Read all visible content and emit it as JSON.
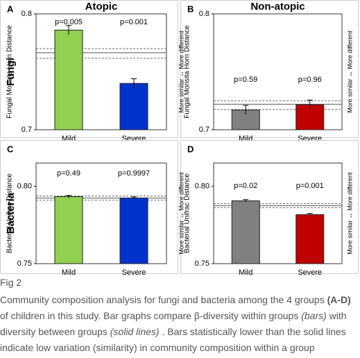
{
  "chart_data": [
    {
      "type": "bar",
      "letter": "A",
      "title": "Atopic",
      "row_label": "Fungi",
      "ylabel": "Fungal Morisita Horn Distance",
      "categories": [
        "Mild",
        "Severe"
      ],
      "values": [
        0.786,
        0.74
      ],
      "errors": [
        0.004,
        0.004
      ],
      "colors": [
        "#92d050",
        "#0033cc"
      ],
      "annotations": [
        "p=0.005",
        "p=0.001"
      ],
      "ylim": [
        0.7,
        0.8
      ],
      "yticks": [
        0.7,
        0.8
      ],
      "between_group": 0.7665,
      "between_group_ci": [
        0.7617,
        0.77
      ]
    },
    {
      "type": "bar",
      "letter": "B",
      "title": "Non-atopic",
      "ylabel": "Fungal Morisita Horn Distance",
      "side_label_left": "More similar ↔ More different",
      "side_label_right": "More similar ↔ More different",
      "categories": [
        "Mild",
        "Severe"
      ],
      "values": [
        0.717,
        0.7216
      ],
      "errors": [
        0.004,
        0.004
      ],
      "colors": [
        "#808080",
        "#c00000"
      ],
      "annotations": [
        "p=0.59",
        "p=0.96"
      ],
      "ylim": [
        0.7,
        0.8
      ],
      "yticks": [
        0.7,
        0.8
      ],
      "between_group": 0.722,
      "between_group_ci": [
        0.7175,
        0.725
      ]
    },
    {
      "type": "bar",
      "letter": "C",
      "row_label": "Bacteria",
      "ylabel": "Bacterial Unifrac Distance",
      "categories": [
        "Mild",
        "Severe"
      ],
      "values": [
        0.7933,
        0.7924
      ],
      "errors": [
        0.0008,
        0.0007
      ],
      "colors": [
        "#92d050",
        "#0033cc"
      ],
      "annotations": [
        "p=0.49",
        "p=0.9997"
      ],
      "ylim": [
        0.75,
        0.815
      ],
      "yticks": [
        {
          "value": 0.75,
          "label": "0.75"
        },
        {
          "value": 0.8,
          "label": "0.80"
        }
      ],
      "between_group": 0.7924,
      "between_group_ci": [
        0.7911,
        0.7937
      ]
    },
    {
      "type": "bar",
      "letter": "D",
      "ylabel": "Bacterial Unifrac Distance",
      "side_label_left": "More similar ↔ More different",
      "side_label_right": "More similar ↔ More different",
      "categories": [
        "Mild",
        "Severe"
      ],
      "values": [
        0.7906,
        0.7817
      ],
      "errors": [
        0.0008,
        0.0007
      ],
      "colors": [
        "#808080",
        "#c00000"
      ],
      "annotations": [
        "p=0.02",
        "p=0.001"
      ],
      "ylim": [
        0.75,
        0.815
      ],
      "yticks": [
        {
          "value": 0.75,
          "label": "0.75"
        },
        {
          "value": 0.8,
          "label": "0.80"
        }
      ],
      "between_group": 0.7875,
      "between_group_ci": [
        0.7862,
        0.7888
      ]
    }
  ],
  "caption": {
    "figure": "Fig 2",
    "parts": [
      "Community composition analysis for fungi and bacteria among the 4 groups ",
      "(A-D)",
      " of children in this study. Bar graphs compare β-diversity within groups ",
      "(bars)",
      " with diversity between groups ",
      "(solid lines)",
      " . Bars statistically lower than the solid lines indicate low variation (similarity) in community composition within a group"
    ]
  }
}
